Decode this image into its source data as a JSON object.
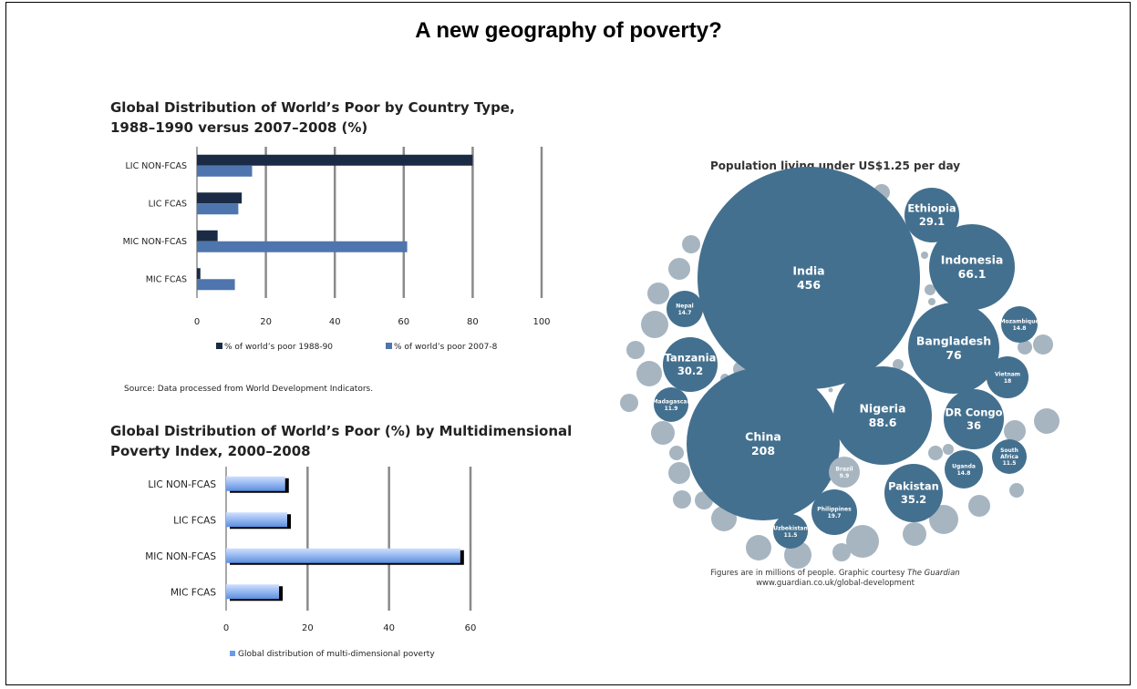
{
  "page": {
    "title": "A new geography of poverty?"
  },
  "chart1": {
    "title_line1": "Global Distribution of World’s Poor by Country Type,",
    "title_line2": "1988–1990 versus  2007–2008 (%)",
    "source": "Source: Data processed from World Development Indicators."
  },
  "chart2": {
    "title_line1": "Global Distribution of World’s Poor (%) by Multidimensional",
    "title_line2": "Poverty Index, 2000–2008"
  },
  "chart3": {
    "title": "Population living under US$1.25 per day",
    "footnote1_a": "Figures are in millions of people. Graphic courtesy ",
    "footnote1_b": "The Guardian",
    "footnote2": "www.guardian.co.uk/global-development"
  },
  "colors": {
    "dark_bar": "#1c2b45",
    "light_bar": "#4e75ad",
    "bubble": "#44708f",
    "bubble_light": "#a7b5c1",
    "grid": "#8a8a8a"
  },
  "chart_data": [
    {
      "type": "bar",
      "orientation": "horizontal",
      "categories": [
        "LIC NON-FCAS",
        "LIC FCAS",
        "MIC NON-FCAS",
        "MIC FCAS"
      ],
      "series": [
        {
          "name": "% of world’s poor 1988-90",
          "values": [
            80,
            13,
            6,
            1
          ]
        },
        {
          "name": "% of world’s poor 2007-8",
          "values": [
            16,
            12,
            61,
            11
          ]
        }
      ],
      "xlim": [
        0,
        100
      ],
      "xticks": [
        0,
        20,
        40,
        60,
        80,
        100
      ],
      "grid": true,
      "legend": "bottom"
    },
    {
      "type": "bar",
      "orientation": "horizontal",
      "categories": [
        "LIC NON-FCAS",
        "LIC FCAS",
        "MIC NON-FCAS",
        "MIC FCAS"
      ],
      "series": [
        {
          "name": "Global distribution of multi-dimensional poverty",
          "values": [
            14.5,
            15,
            57.5,
            13
          ]
        }
      ],
      "xlim": [
        0,
        60
      ],
      "xticks": [
        0,
        20,
        40,
        60
      ],
      "grid": true,
      "legend": "bottom"
    },
    {
      "type": "bubble",
      "items": [
        {
          "name": "India",
          "value": 456
        },
        {
          "name": "China",
          "value": 208
        },
        {
          "name": "Nigeria",
          "value": 88.6
        },
        {
          "name": "Bangladesh",
          "value": 76
        },
        {
          "name": "Indonesia",
          "value": 66.1
        },
        {
          "name": "DR Congo",
          "value": 36
        },
        {
          "name": "Pakistan",
          "value": 35.2
        },
        {
          "name": "Tanzania",
          "value": 30.2
        },
        {
          "name": "Ethiopia",
          "value": 29.1
        },
        {
          "name": "Philippines",
          "value": 19.7
        },
        {
          "name": "Vietnam",
          "value": 18
        },
        {
          "name": "Mozambique",
          "value": 14.8
        },
        {
          "name": "Uganda",
          "value": 14.8
        },
        {
          "name": "Nepal",
          "value": 14.7
        },
        {
          "name": "Madagascar",
          "value": 11.9
        },
        {
          "name": "South Africa",
          "value": 11.5
        },
        {
          "name": "Uzbekistan",
          "value": 11.5
        },
        {
          "name": "Brazil",
          "value": 9.9
        }
      ]
    }
  ]
}
